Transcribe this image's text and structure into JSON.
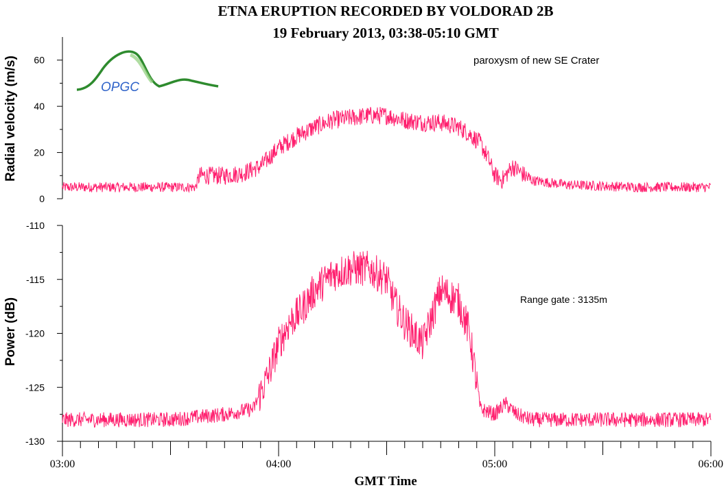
{
  "chart_data": {
    "title": "ETNA ERUPTION RECORDED BY VOLDORAD 2B",
    "subtitle": "19 February 2013, 03:38-05:10 GMT",
    "xlabel": "GMT Time",
    "x_ticks": [
      "03:00",
      "04:00",
      "05:00",
      "06:00"
    ],
    "x_range": [
      "03:00",
      "06:00"
    ],
    "series_color": "#ff1f6e",
    "logo_text": "OPGC",
    "logo_color": "#2e8b2e",
    "panels": [
      {
        "type": "line",
        "ylabel": "Radial velocity (m/s)",
        "ylim": [
          0,
          70
        ],
        "y_ticks": [
          0,
          20,
          40,
          60
        ],
        "annotation": "paroxysm of new SE Crater",
        "x": [
          "03:00",
          "03:30",
          "03:37",
          "03:38",
          "03:45",
          "03:50",
          "03:55",
          "04:00",
          "04:05",
          "04:10",
          "04:15",
          "04:20",
          "04:25",
          "04:30",
          "04:35",
          "04:40",
          "04:45",
          "04:50",
          "04:53",
          "04:56",
          "04:58",
          "05:00",
          "05:02",
          "05:05",
          "05:10",
          "05:20",
          "05:40",
          "06:00"
        ],
        "y": [
          5,
          5,
          5,
          10,
          10,
          11,
          14,
          22,
          27,
          31,
          34,
          35,
          36,
          36,
          34,
          33,
          33,
          31,
          28,
          24,
          18,
          10,
          8,
          14,
          8,
          6,
          5,
          5
        ]
      },
      {
        "type": "line",
        "ylabel": "Power (dB)",
        "ylim": [
          -130,
          -110
        ],
        "y_ticks": [
          -110,
          -115,
          -120,
          -125,
          -130
        ],
        "annotation": "Range gate : 3135m",
        "x": [
          "03:00",
          "03:30",
          "03:45",
          "03:53",
          "03:57",
          "04:00",
          "04:03",
          "04:06",
          "04:10",
          "04:15",
          "04:20",
          "04:25",
          "04:30",
          "04:32",
          "04:35",
          "04:40",
          "04:45",
          "04:50",
          "04:53",
          "04:56",
          "05:00",
          "05:03",
          "05:06",
          "05:10",
          "05:20",
          "05:40",
          "06:00"
        ],
        "y": [
          -128,
          -128,
          -127.5,
          -127,
          -124,
          -121,
          -119,
          -118,
          -116,
          -114.5,
          -114,
          -114,
          -115,
          -117,
          -119,
          -121,
          -116,
          -117,
          -120,
          -127,
          -127.5,
          -126.5,
          -127.5,
          -128,
          -128,
          -128,
          -128
        ]
      }
    ]
  }
}
